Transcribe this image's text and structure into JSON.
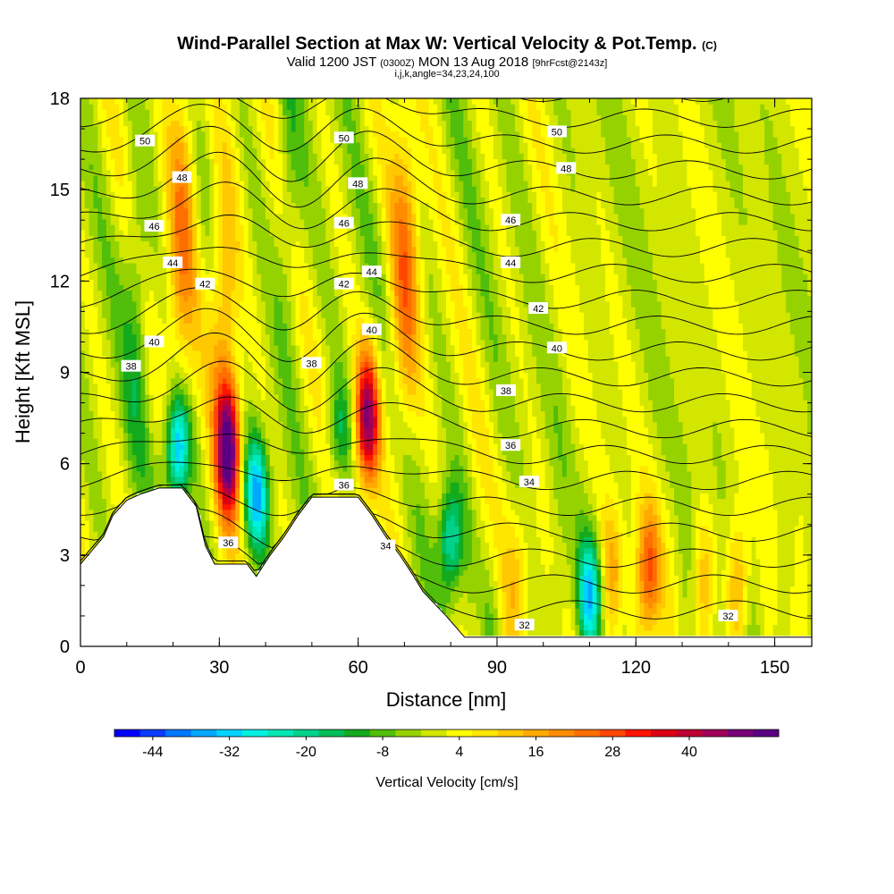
{
  "title": {
    "main": "Wind-Parallel Section at Max W: Vertical Velocity & Pot.Temp.",
    "main_suffix": "(C)",
    "valid_prefix": "Valid 1200 JST",
    "valid_z": "(0300Z)",
    "valid_date": "MON 13 Aug 2018",
    "valid_fcst": "[9hrFcst@2143z]",
    "indices": "i,j,k,angle=34,23,24,100"
  },
  "chart_data": {
    "type": "heatmap",
    "xlabel": "Distance [nm]",
    "ylabel": "Height [Kft MSL]",
    "xlim": [
      0,
      158
    ],
    "ylim": [
      0,
      18
    ],
    "x_ticks": [
      "0",
      "30",
      "60",
      "90",
      "120",
      "150"
    ],
    "y_ticks": [
      "0",
      "3",
      "6",
      "9",
      "12",
      "15",
      "18"
    ],
    "colorbar": {
      "label": "Vertical Velocity [cm/s]",
      "tick_labels": [
        "-44",
        "-32",
        "-20",
        "-8",
        "4",
        "16",
        "28",
        "40"
      ],
      "colors": [
        "#0000ff",
        "#0a3cff",
        "#0078ff",
        "#00a8ff",
        "#00d2ff",
        "#00f0e0",
        "#00e6b4",
        "#00d28c",
        "#00be5a",
        "#14aa1e",
        "#50be0a",
        "#96d200",
        "#d2e600",
        "#ffff00",
        "#ffe600",
        "#ffc800",
        "#ffaa00",
        "#ff8c00",
        "#ff6e00",
        "#ff4600",
        "#ff1400",
        "#dc0014",
        "#be0032",
        "#a0005a",
        "#780078",
        "#5a0082"
      ]
    },
    "theta_levels": [
      "32",
      "34",
      "36",
      "38",
      "40",
      "42",
      "44",
      "46",
      "48",
      "50"
    ],
    "terrain_kft": [
      [
        0,
        2.7
      ],
      [
        5,
        3.6
      ],
      [
        7,
        4.3
      ],
      [
        10,
        4.8
      ],
      [
        13,
        5.0
      ],
      [
        17,
        5.2
      ],
      [
        22,
        5.2
      ],
      [
        25,
        4.6
      ],
      [
        27,
        3.3
      ],
      [
        29,
        2.7
      ],
      [
        36,
        2.7
      ],
      [
        38,
        2.3
      ],
      [
        41,
        3.0
      ],
      [
        44,
        3.6
      ],
      [
        47,
        4.3
      ],
      [
        50,
        4.9
      ],
      [
        57,
        4.9
      ],
      [
        60,
        4.9
      ],
      [
        63,
        4.3
      ],
      [
        66,
        3.6
      ],
      [
        69,
        3.0
      ],
      [
        72,
        2.3
      ],
      [
        74,
        1.8
      ],
      [
        79,
        1.0
      ],
      [
        83,
        0.3
      ],
      [
        158,
        0.3
      ]
    ],
    "updrafts": [
      {
        "x": 32,
        "z": 6.5,
        "w": 48
      },
      {
        "x": 62,
        "z": 7.5,
        "w": 44
      },
      {
        "x": 22,
        "z": 14,
        "w": 20
      },
      {
        "x": 70,
        "z": 12,
        "w": 22
      },
      {
        "x": 31,
        "z": 11,
        "w": 18
      },
      {
        "x": 123,
        "z": 2.5,
        "w": 26
      },
      {
        "x": 115,
        "z": 2.5,
        "w": 14
      },
      {
        "x": 135,
        "z": 2.2,
        "w": 12
      },
      {
        "x": 142,
        "z": 2.0,
        "w": 14
      },
      {
        "x": 95,
        "z": 2.5,
        "w": 10
      }
    ],
    "downdrafts": [
      {
        "x": 21,
        "z": 6.5,
        "w": -36
      },
      {
        "x": 38,
        "z": 5.0,
        "w": -32
      },
      {
        "x": 80,
        "z": 3.5,
        "w": -24
      },
      {
        "x": 110,
        "z": 1.8,
        "w": -28
      },
      {
        "x": 56,
        "z": 7.0,
        "w": -14
      },
      {
        "x": 12,
        "z": 11,
        "w": -10
      },
      {
        "x": 45,
        "z": 15,
        "w": -8
      }
    ]
  }
}
